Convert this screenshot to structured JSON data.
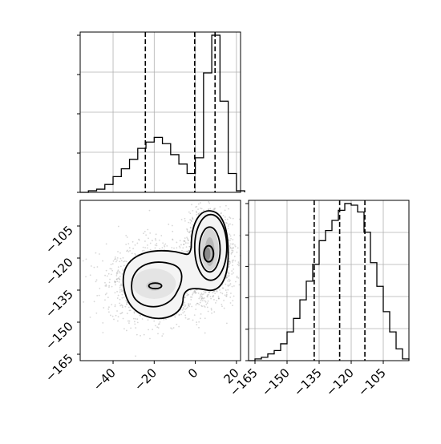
{
  "chart_data": [
    {
      "panel": "x-marginal",
      "type": "histogram",
      "title": "",
      "xlabel": "",
      "ylabel": "",
      "xlim": [
        -56,
        22
      ],
      "grid": true,
      "bins_x": [
        -56,
        -52,
        -48,
        -44,
        -40,
        -36,
        -32,
        -28,
        -24,
        -20,
        -16,
        -12,
        -8,
        -4,
        0,
        4,
        8,
        12,
        16,
        20
      ],
      "counts": [
        0,
        1,
        2,
        5,
        10,
        15,
        21,
        28,
        32,
        35,
        31,
        24,
        18,
        12,
        22,
        76,
        100,
        58,
        12,
        1
      ],
      "quantile_lines": [
        -24.3,
        -0.3,
        9.6
      ]
    },
    {
      "panel": "joint",
      "type": "contour",
      "title": "",
      "xlabel": "",
      "ylabel": "",
      "xlim": [
        -56,
        22
      ],
      "ylim": [
        -168,
        -93
      ],
      "xticks": [
        -40,
        -20,
        0,
        20
      ],
      "yticks": [
        -105,
        -120,
        -135,
        -150,
        -165
      ],
      "modes": [
        {
          "x": -20,
          "y": -132,
          "weight": 0.45
        },
        {
          "x": 7,
          "y": -118,
          "weight": 0.55
        }
      ]
    },
    {
      "panel": "y-marginal",
      "type": "histogram",
      "title": "",
      "xlabel": "",
      "ylabel": "",
      "xlim": [
        -168,
        -93
      ],
      "grid": true,
      "xticks": [
        -165,
        -150,
        -135,
        -120,
        -105
      ],
      "bins_x": [
        -168,
        -165,
        -162,
        -159,
        -156,
        -153,
        -150,
        -147,
        -144,
        -141,
        -138,
        -135,
        -132,
        -129,
        -126,
        -123,
        -120,
        -117,
        -114,
        -111,
        -108,
        -105,
        -102,
        -99,
        -96,
        -93
      ],
      "counts": [
        0,
        1,
        2,
        4,
        6,
        10,
        17,
        25,
        36,
        47,
        57,
        71,
        77,
        83,
        89,
        93,
        92,
        88,
        76,
        58,
        44,
        29,
        17,
        7,
        1
      ],
      "quantile_lines": [
        -137.3,
        -125.4,
        -113.6
      ]
    }
  ]
}
